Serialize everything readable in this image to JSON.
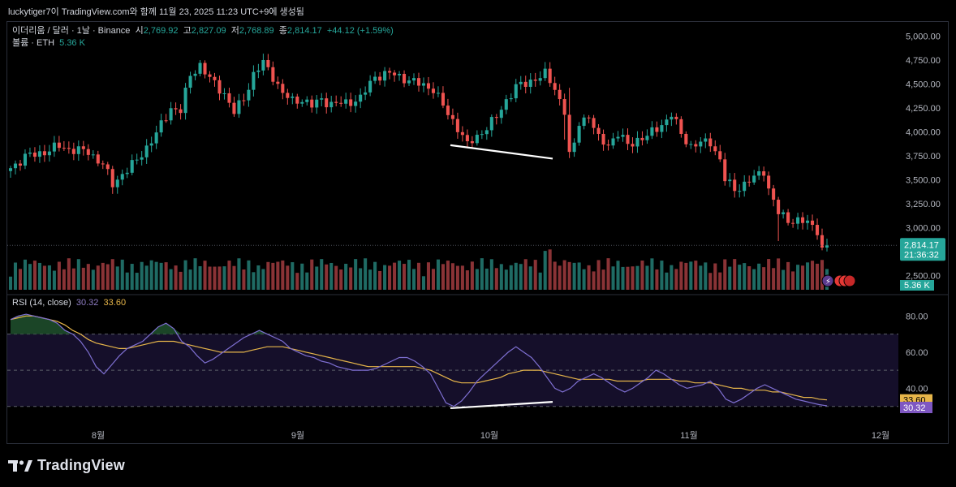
{
  "caption": "luckytiger7이 TradingView.com와 함께 11월 23, 2025 11:23 UTC+9에 생성됨",
  "header": {
    "symbol": "이더리움 / 달러 · 1날 · Binance",
    "open_label": "시",
    "open": "2,769.92",
    "high_label": "고",
    "high": "2,827.09",
    "low_label": "저",
    "low": "2,768.89",
    "close_label": "종",
    "close": "2,814.17",
    "change": "+44.12 (+1.59%)"
  },
  "volume": {
    "label": "볼륨 · ETH",
    "value": "5.36 K"
  },
  "rsi": {
    "label": "RSI (14, close)",
    "value": "30.32",
    "ma": "33.60"
  },
  "price_badge": {
    "price": "2,814.17",
    "countdown": "21:36:32"
  },
  "volume_badge": "5.36 K",
  "footer": {
    "brand": "TradingView"
  },
  "colors": {
    "up": "#26a69a",
    "down": "#ef5350",
    "rsi_line": "#7e6fd1",
    "rsi_ma": "#e7b64a",
    "rsi_band": "#150f2a"
  },
  "chart_data": [
    {
      "type": "candlestick",
      "title": "이더리움 / 달러 · 1날 · Binance",
      "x_ticks": [
        "8월",
        "9월",
        "10월",
        "11월",
        "12월"
      ],
      "y_ticks": [
        "5,000.00",
        "4,750.00",
        "4,500.00",
        "4,250.00",
        "4,000.00",
        "3,750.00",
        "3,500.00",
        "3,250.00",
        "3,000.00",
        "2,500.00"
      ],
      "ylim": [
        2350,
        5080
      ],
      "anchors": [
        [
          0,
          3620
        ],
        [
          3,
          3740
        ],
        [
          7,
          3790
        ],
        [
          10,
          3850
        ],
        [
          12,
          3820
        ],
        [
          16,
          3790
        ],
        [
          19,
          3660
        ],
        [
          21,
          3450
        ],
        [
          23,
          3560
        ],
        [
          26,
          3700
        ],
        [
          28,
          3840
        ],
        [
          30,
          3980
        ],
        [
          33,
          4250
        ],
        [
          35,
          4220
        ],
        [
          37,
          4590
        ],
        [
          39,
          4700
        ],
        [
          41,
          4550
        ],
        [
          44,
          4400
        ],
        [
          46,
          4200
        ],
        [
          48,
          4350
        ],
        [
          50,
          4600
        ],
        [
          52,
          4720
        ],
        [
          54,
          4580
        ],
        [
          56,
          4400
        ],
        [
          58,
          4320
        ],
        [
          60,
          4340
        ],
        [
          62,
          4270
        ],
        [
          64,
          4340
        ],
        [
          66,
          4290
        ],
        [
          69,
          4300
        ],
        [
          72,
          4350
        ],
        [
          75,
          4580
        ],
        [
          78,
          4610
        ],
        [
          81,
          4560
        ],
        [
          84,
          4500
        ],
        [
          87,
          4450
        ],
        [
          90,
          4180
        ],
        [
          92,
          4050
        ],
        [
          94,
          3860
        ],
        [
          96,
          3950
        ],
        [
          98,
          4050
        ],
        [
          100,
          4150
        ],
        [
          102,
          4330
        ],
        [
          104,
          4470
        ],
        [
          106,
          4500
        ],
        [
          108,
          4560
        ],
        [
          110,
          4600
        ],
        [
          112,
          4450
        ],
        [
          114,
          4220
        ],
        [
          115,
          3750
        ],
        [
          116,
          3860
        ],
        [
          117,
          4100
        ],
        [
          119,
          4170
        ],
        [
          121,
          3920
        ],
        [
          123,
          3870
        ],
        [
          125,
          3980
        ],
        [
          127,
          3860
        ],
        [
          129,
          3920
        ],
        [
          131,
          3950
        ],
        [
          133,
          4040
        ],
        [
          135,
          4120
        ],
        [
          136,
          4180
        ],
        [
          138,
          3980
        ],
        [
          140,
          3850
        ],
        [
          142,
          3880
        ],
        [
          144,
          3900
        ],
        [
          146,
          3700
        ],
        [
          147,
          3500
        ],
        [
          149,
          3400
        ],
        [
          151,
          3450
        ],
        [
          153,
          3520
        ],
        [
          155,
          3600
        ],
        [
          156,
          3400
        ],
        [
          158,
          3150
        ],
        [
          160,
          3080
        ],
        [
          162,
          3070
        ],
        [
          164,
          3050
        ],
        [
          166,
          2980
        ],
        [
          167,
          2770
        ],
        [
          168,
          2814
        ]
      ],
      "volume_ylim": [
        0,
        650000
      ]
    },
    {
      "type": "line",
      "title": "RSI (14, close)",
      "y_ticks": [
        "80.00",
        "60.00",
        "40.00"
      ],
      "ylim": [
        20,
        90
      ],
      "bands": [
        30,
        50,
        70
      ],
      "series": [
        {
          "name": "RSI",
          "values": [
            78,
            80,
            81,
            80,
            79,
            78,
            76,
            72,
            70,
            66,
            60,
            52,
            48,
            53,
            58,
            62,
            64,
            66,
            70,
            74,
            76,
            73,
            66,
            63,
            58,
            54,
            56,
            59,
            62,
            65,
            68,
            70,
            72,
            70,
            68,
            66,
            62,
            60,
            58,
            57,
            55,
            54,
            52,
            51,
            50,
            50,
            50,
            51,
            53,
            55,
            57,
            57,
            55,
            52,
            48,
            40,
            32,
            30,
            33,
            38,
            44,
            48,
            52,
            56,
            60,
            63,
            60,
            57,
            52,
            46,
            40,
            38,
            40,
            44,
            46,
            48,
            46,
            43,
            40,
            38,
            40,
            43,
            46,
            50,
            48,
            45,
            42,
            40,
            41,
            42,
            44,
            40,
            34,
            32,
            34,
            37,
            40,
            42,
            40,
            38,
            36,
            34,
            33,
            32,
            31,
            30.32
          ]
        },
        {
          "name": "MA",
          "values": [
            78,
            79,
            80,
            80,
            79,
            78,
            77,
            75,
            72,
            70,
            67,
            65,
            64,
            63,
            62,
            62,
            63,
            64,
            65,
            66,
            66,
            66,
            65,
            64,
            63,
            62,
            61,
            60,
            60,
            60,
            60,
            61,
            62,
            63,
            63,
            63,
            62,
            61,
            60,
            59,
            58,
            57,
            56,
            55,
            54,
            53,
            52,
            52,
            52,
            52,
            52,
            52,
            52,
            51,
            50,
            48,
            46,
            44,
            43,
            43,
            43,
            44,
            45,
            46,
            48,
            49,
            50,
            50,
            50,
            49,
            48,
            47,
            46,
            45,
            45,
            45,
            45,
            45,
            44,
            44,
            44,
            44,
            45,
            45,
            45,
            45,
            44,
            44,
            43,
            43,
            43,
            42,
            41,
            40,
            40,
            39,
            39,
            39,
            38,
            38,
            37,
            36,
            35,
            35,
            34,
            33.6
          ]
        }
      ]
    }
  ]
}
